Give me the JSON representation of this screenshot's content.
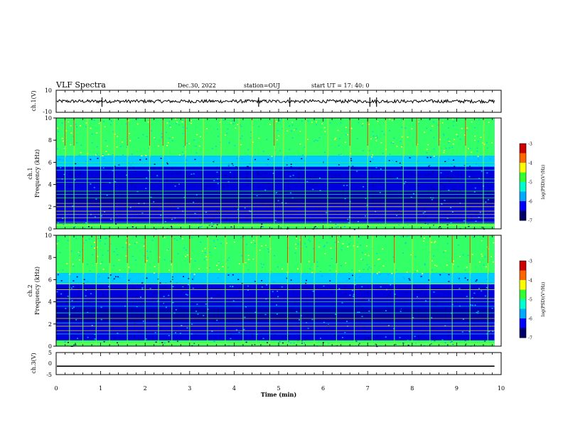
{
  "header": {
    "title": "VLF Spectra",
    "date": "Dec.30, 2022",
    "station": "station=OUJ",
    "start": "start  UT  =   17: 40: 0"
  },
  "colors": {
    "ink": "#000000",
    "colormap": [
      "#000066",
      "#0000ff",
      "#00aaff",
      "#00ffcc",
      "#33ff33",
      "#ffff00",
      "#ff6600",
      "#cc0000",
      "#ff99aa"
    ]
  },
  "chart_data": [
    {
      "type": "line",
      "name": "ch1-waveform",
      "ylabel": "ch.1(V)",
      "ylim": [
        -10,
        10
      ],
      "yticks": [
        "10",
        "-10"
      ],
      "xlim": [
        0,
        10
      ],
      "level": 0,
      "spikes_min": [
        1.03,
        4.55,
        5.25,
        7.05,
        7.2
      ]
    },
    {
      "type": "heatmap",
      "name": "ch1-spectrogram",
      "ylabel": "ch.1\nFrequency (kHz)",
      "ylabel_lines": [
        "ch.1",
        "Frequency (kHz)"
      ],
      "ylim": [
        0,
        10
      ],
      "yticks": [
        "0",
        "2",
        "4",
        "6",
        "8",
        "10"
      ],
      "xlim": [
        0,
        9.85
      ],
      "colorbar": {
        "label": "log(PSD)(V²/Hz)",
        "ticks": [
          "-3",
          "-4",
          "-5",
          "-6",
          "-7"
        ],
        "range": [
          -7,
          -3
        ]
      },
      "bands_khz": [
        0.1,
        0.3,
        0.6,
        1.0,
        1.3,
        1.6,
        2.0,
        2.3,
        2.8,
        3.1,
        3.4,
        4.2,
        4.5,
        5.3,
        5.7,
        6.0
      ],
      "lines_min": [
        0.2,
        0.4,
        0.7,
        1.0,
        1.3,
        1.6,
        2.1,
        2.4,
        2.9,
        3.3,
        3.7,
        4.1,
        4.4,
        4.9,
        5.1,
        5.6,
        6.1,
        6.6,
        7.0,
        7.4,
        7.8,
        8.1,
        8.6,
        9.2,
        9.6
      ]
    },
    {
      "type": "heatmap",
      "name": "ch2-spectrogram",
      "ylabel": "ch.2\nFrequency (kHz)",
      "ylabel_lines": [
        "ch.2",
        "Frequency (kHz)"
      ],
      "ylim": [
        0,
        10
      ],
      "yticks": [
        "0",
        "2",
        "4",
        "6",
        "8",
        "10"
      ],
      "xlim": [
        0,
        9.85
      ],
      "colorbar": {
        "label": "log(PSD)(V²/Hz)",
        "ticks": [
          "-3",
          "-4",
          "-5",
          "-6",
          "-7"
        ],
        "range": [
          -7,
          -3
        ]
      },
      "bands_khz": [
        0.2,
        0.5,
        1.1,
        1.4,
        1.8,
        2.1,
        2.5,
        3.0,
        3.6,
        4.0,
        4.3,
        5.1,
        5.6
      ],
      "lines_min": [
        0.3,
        0.6,
        0.9,
        1.2,
        1.6,
        2.0,
        2.3,
        2.6,
        3.0,
        3.4,
        3.8,
        4.2,
        4.5,
        4.8,
        5.2,
        5.5,
        5.8,
        6.3,
        6.7,
        7.1,
        7.6,
        8.0,
        8.4,
        8.9,
        9.3,
        9.7
      ]
    },
    {
      "type": "line",
      "name": "ch3-waveform",
      "ylabel": "ch.3(V)",
      "ylim": [
        -5,
        5
      ],
      "yticks": [
        "5",
        "0",
        "-5"
      ],
      "xlim": [
        0,
        10
      ],
      "level": -1.2,
      "xlabel": "Time (min)",
      "xticks": [
        "0",
        "1",
        "2",
        "3",
        "4",
        "5",
        "6",
        "7",
        "8",
        "9",
        "10"
      ]
    }
  ]
}
